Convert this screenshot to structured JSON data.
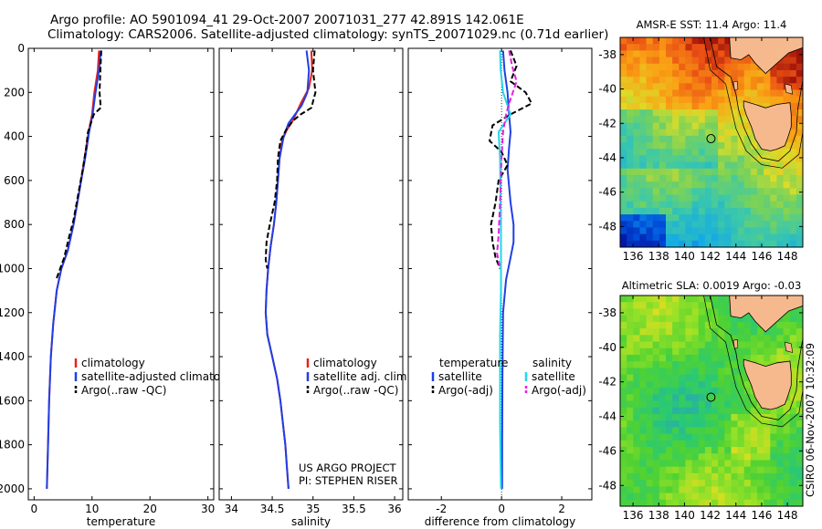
{
  "header": {
    "line1": "Argo profile: AO 5901094_41 29-Oct-2007 20071031_277 42.891S 142.061E",
    "line2": "Climatology: CARS2006. Satellite-adjusted climatology: synTS_20071029.nc (0.71d earlier)"
  },
  "credit": {
    "line1": "US ARGO PROJECT",
    "line2": "PI: STEPHEN RISER"
  },
  "side_stamp": "CSIRO 06-Nov-2007 10:32:09",
  "colors": {
    "climatology": "#e8201a",
    "satellite": "#1f3fe6",
    "argo": "#000000",
    "sat_salinity": "#22d8e8",
    "argo_salinity": "#e61fe0",
    "land": "#f6b98e"
  },
  "maps": [
    {
      "title": "AMSR-E SST: 11.4 Argo: 11.4",
      "kind": "sst",
      "xticks": [
        "136",
        "138",
        "140",
        "142",
        "144",
        "146",
        "148"
      ],
      "yticks": [
        "-38",
        "-40",
        "-42",
        "-44",
        "-46",
        "-48"
      ],
      "lon_range": [
        135,
        149.2
      ],
      "lat_range": [
        -49.2,
        -37
      ],
      "float_lon": 142.06,
      "float_lat": -42.89
    },
    {
      "title": "Altimetric SLA: 0.0019 Argo: -0.03",
      "kind": "sla",
      "xticks": [
        "136",
        "138",
        "140",
        "142",
        "144",
        "146",
        "148"
      ],
      "yticks": [
        "-38",
        "-40",
        "-42",
        "-44",
        "-46",
        "-48"
      ],
      "lon_range": [
        135,
        149.2
      ],
      "lat_range": [
        -49.2,
        -37
      ],
      "float_lon": 142.06,
      "float_lat": -42.89
    }
  ],
  "chart_data": [
    {
      "type": "line",
      "xlabel": "temperature",
      "ylabel": "",
      "xlim": [
        -1,
        31
      ],
      "ylim": [
        2050,
        0
      ],
      "xticks": [
        0,
        10,
        20,
        30
      ],
      "yticks": [
        0,
        200,
        400,
        600,
        800,
        1000,
        1200,
        1400,
        1600,
        1800,
        2000
      ],
      "legend": [
        "climatology",
        "satellite-adjusted climatology",
        "Argo(..raw -QC)"
      ],
      "series": [
        {
          "name": "climatology",
          "color_key": "climatology",
          "dash": "",
          "points": [
            [
              11.2,
              10
            ],
            [
              11.0,
              100
            ],
            [
              10.4,
              200
            ],
            [
              10.0,
              300
            ],
            [
              9.4,
              380
            ],
            [
              8.7,
              500
            ],
            [
              7.8,
              650
            ],
            [
              6.8,
              800
            ],
            [
              5.8,
              920
            ],
            [
              4.7,
              1000
            ],
            [
              3.9,
              1100
            ],
            [
              3.3,
              1250
            ],
            [
              2.9,
              1400
            ],
            [
              2.6,
              1600
            ],
            [
              2.4,
              1800
            ],
            [
              2.2,
              2000
            ]
          ]
        },
        {
          "name": "satellite-adjusted climatology",
          "color_key": "satellite",
          "dash": "",
          "points": [
            [
              11.5,
              10
            ],
            [
              11.2,
              100
            ],
            [
              10.6,
              200
            ],
            [
              10.1,
              300
            ],
            [
              9.5,
              380
            ],
            [
              8.8,
              500
            ],
            [
              7.8,
              650
            ],
            [
              6.8,
              800
            ],
            [
              5.8,
              920
            ],
            [
              4.7,
              1000
            ],
            [
              3.9,
              1100
            ],
            [
              3.3,
              1250
            ],
            [
              2.9,
              1400
            ],
            [
              2.6,
              1600
            ],
            [
              2.4,
              1800
            ],
            [
              2.2,
              2000
            ]
          ]
        },
        {
          "name": "Argo(..raw -QC)",
          "color_key": "argo",
          "dash": "6,3",
          "points": [
            [
              11.6,
              10
            ],
            [
              11.4,
              120
            ],
            [
              11.3,
              200
            ],
            [
              11.5,
              270
            ],
            [
              10.3,
              300
            ],
            [
              9.3,
              380
            ],
            [
              9.0,
              450
            ],
            [
              8.4,
              550
            ],
            [
              7.7,
              650
            ],
            [
              6.8,
              780
            ],
            [
              6.0,
              860
            ],
            [
              5.2,
              950
            ],
            [
              4.5,
              1000
            ],
            [
              3.8,
              1050
            ]
          ]
        }
      ]
    },
    {
      "type": "line",
      "xlabel": "salinity",
      "ylabel": "",
      "xlim": [
        33.85,
        36.1
      ],
      "ylim": [
        2050,
        0
      ],
      "xticks": [
        34,
        34.5,
        35,
        35.5,
        36
      ],
      "yticks": [
        0,
        200,
        400,
        600,
        800,
        1000,
        1200,
        1400,
        1600,
        1800,
        2000
      ],
      "legend": [
        "climatology",
        "satellite adj. clim.",
        "Argo(..raw -QC)"
      ],
      "series": [
        {
          "name": "climatology",
          "color_key": "climatology",
          "dash": "",
          "points": [
            [
              34.98,
              10
            ],
            [
              34.99,
              100
            ],
            [
              34.95,
              180
            ],
            [
              34.85,
              250
            ],
            [
              34.75,
              330
            ],
            [
              34.68,
              370
            ],
            [
              34.62,
              420
            ],
            [
              34.59,
              500
            ],
            [
              34.57,
              600
            ],
            [
              34.55,
              700
            ],
            [
              34.52,
              800
            ],
            [
              34.48,
              900
            ],
            [
              34.45,
              1000
            ],
            [
              34.43,
              1100
            ],
            [
              34.42,
              1200
            ],
            [
              34.44,
              1300
            ],
            [
              34.5,
              1400
            ],
            [
              34.56,
              1500
            ],
            [
              34.6,
              1600
            ],
            [
              34.63,
              1700
            ],
            [
              34.66,
              1800
            ],
            [
              34.68,
              1900
            ],
            [
              34.7,
              2000
            ]
          ]
        },
        {
          "name": "satellite adj. clim.",
          "color_key": "satellite",
          "dash": "",
          "points": [
            [
              34.92,
              10
            ],
            [
              34.95,
              100
            ],
            [
              34.93,
              200
            ],
            [
              34.86,
              260
            ],
            [
              34.78,
              300
            ],
            [
              34.7,
              340
            ],
            [
              34.64,
              400
            ],
            [
              34.59,
              500
            ],
            [
              34.57,
              600
            ],
            [
              34.55,
              700
            ],
            [
              34.52,
              800
            ],
            [
              34.48,
              900
            ],
            [
              34.45,
              1000
            ],
            [
              34.43,
              1100
            ],
            [
              34.42,
              1200
            ],
            [
              34.44,
              1300
            ],
            [
              34.5,
              1400
            ],
            [
              34.56,
              1500
            ],
            [
              34.6,
              1600
            ],
            [
              34.63,
              1700
            ],
            [
              34.66,
              1800
            ],
            [
              34.68,
              1900
            ],
            [
              34.7,
              2000
            ]
          ]
        },
        {
          "name": "Argo(..raw -QC)",
          "color_key": "argo",
          "dash": "6,3",
          "points": [
            [
              35.02,
              10
            ],
            [
              35.0,
              100
            ],
            [
              35.03,
              200
            ],
            [
              34.98,
              270
            ],
            [
              34.85,
              300
            ],
            [
              34.75,
              330
            ],
            [
              34.67,
              370
            ],
            [
              34.6,
              420
            ],
            [
              34.57,
              500
            ],
            [
              34.56,
              600
            ],
            [
              34.53,
              700
            ],
            [
              34.47,
              800
            ],
            [
              34.43,
              880
            ],
            [
              34.42,
              960
            ],
            [
              34.44,
              1000
            ]
          ]
        }
      ]
    },
    {
      "type": "line",
      "xlabel": "difference from climatology",
      "ylabel": "",
      "xlim": [
        -3.1,
        3.0
      ],
      "ylim": [
        2050,
        0
      ],
      "xticks": [
        -2,
        0,
        2
      ],
      "yticks": [
        0,
        200,
        400,
        600,
        800,
        1000,
        1200,
        1400,
        1600,
        1800,
        2000
      ],
      "legend_left_title": "temperature",
      "legend_right_title": "salinity",
      "legend": [
        "satellite",
        "Argo(-adj)",
        "satellite",
        "Argo(-adj)"
      ],
      "series": [
        {
          "name": "temperature satellite",
          "color_key": "satellite",
          "dash": "",
          "points": [
            [
              0.05,
              10
            ],
            [
              0.1,
              100
            ],
            [
              0.2,
              200
            ],
            [
              0.25,
              300
            ],
            [
              0.3,
              380
            ],
            [
              0.25,
              450
            ],
            [
              0.2,
              550
            ],
            [
              0.3,
              700
            ],
            [
              0.4,
              800
            ],
            [
              0.4,
              880
            ],
            [
              0.3,
              950
            ],
            [
              0.15,
              1050
            ],
            [
              0.05,
              1200
            ],
            [
              0.03,
              1500
            ],
            [
              0.02,
              1800
            ],
            [
              0.02,
              2000
            ]
          ]
        },
        {
          "name": "temperature Argo(-adj)",
          "color_key": "argo",
          "dash": "6,3",
          "points": [
            [
              0.3,
              10
            ],
            [
              0.5,
              80
            ],
            [
              0.3,
              150
            ],
            [
              0.8,
              200
            ],
            [
              1.0,
              250
            ],
            [
              0.3,
              300
            ],
            [
              -0.3,
              350
            ],
            [
              -0.4,
              420
            ],
            [
              0.0,
              470
            ],
            [
              0.2,
              530
            ],
            [
              -0.1,
              600
            ],
            [
              -0.2,
              700
            ],
            [
              -0.35,
              800
            ],
            [
              -0.3,
              880
            ],
            [
              -0.2,
              950
            ],
            [
              -0.05,
              1000
            ]
          ]
        },
        {
          "name": "salinity satellite",
          "color_key": "sat_salinity",
          "dash": "",
          "points": [
            [
              -0.05,
              10
            ],
            [
              -0.03,
              100
            ],
            [
              0.05,
              200
            ],
            [
              0.3,
              300
            ],
            [
              -0.1,
              380
            ],
            [
              -0.05,
              500
            ],
            [
              -0.02,
              800
            ],
            [
              -0.02,
              1100
            ],
            [
              -0.05,
              1300
            ],
            [
              -0.05,
              1700
            ],
            [
              -0.02,
              2000
            ]
          ]
        },
        {
          "name": "salinity Argo(-adj)",
          "color_key": "argo_salinity",
          "dash": "6,3",
          "points": [
            [
              0.25,
              10
            ],
            [
              0.35,
              80
            ],
            [
              0.5,
              150
            ],
            [
              0.25,
              250
            ],
            [
              0.15,
              300
            ],
            [
              0.05,
              380
            ],
            [
              0.0,
              500
            ],
            [
              -0.05,
              700
            ],
            [
              -0.1,
              850
            ],
            [
              -0.15,
              930
            ],
            [
              -0.05,
              1000
            ]
          ]
        }
      ]
    }
  ]
}
